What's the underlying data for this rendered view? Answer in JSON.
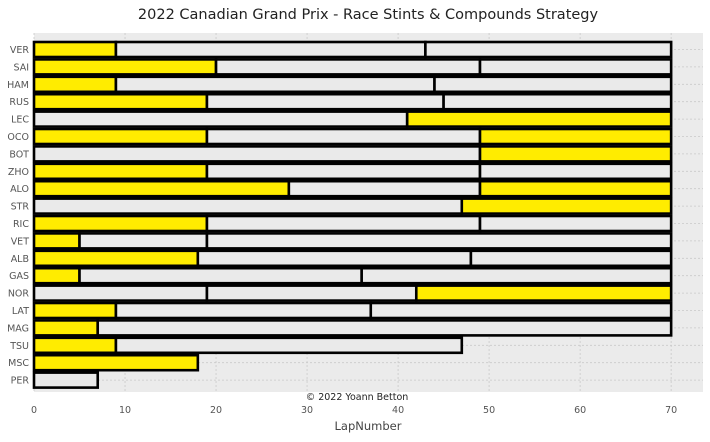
{
  "chart_data": {
    "type": "bar",
    "orientation": "horizontal",
    "stacked": true,
    "title": "2022 Canadian Grand Prix - Race Stints & Compounds Strategy",
    "xlabel": "LapNumber",
    "ylabel": "",
    "xlim": [
      0,
      73.5
    ],
    "xticks": [
      0,
      10,
      20,
      30,
      40,
      50,
      60,
      70
    ],
    "grid": true,
    "annotation": "© 2022 Yoann Betton",
    "compound_colors": {
      "SOFT": "#da291c",
      "MEDIUM": "#ffec00",
      "HARD": "#eaeaea"
    },
    "drivers": [
      {
        "driver": "VER",
        "stints": [
          {
            "compound": "MEDIUM",
            "laps": 9
          },
          {
            "compound": "HARD",
            "laps": 34
          },
          {
            "compound": "HARD",
            "laps": 27
          }
        ]
      },
      {
        "driver": "SAI",
        "stints": [
          {
            "compound": "MEDIUM",
            "laps": 20
          },
          {
            "compound": "HARD",
            "laps": 29
          },
          {
            "compound": "HARD",
            "laps": 21
          }
        ]
      },
      {
        "driver": "HAM",
        "stints": [
          {
            "compound": "MEDIUM",
            "laps": 9
          },
          {
            "compound": "HARD",
            "laps": 35
          },
          {
            "compound": "HARD",
            "laps": 26
          }
        ]
      },
      {
        "driver": "RUS",
        "stints": [
          {
            "compound": "MEDIUM",
            "laps": 19
          },
          {
            "compound": "HARD",
            "laps": 26
          },
          {
            "compound": "HARD",
            "laps": 25
          }
        ]
      },
      {
        "driver": "LEC",
        "stints": [
          {
            "compound": "HARD",
            "laps": 41
          },
          {
            "compound": "MEDIUM",
            "laps": 29
          }
        ]
      },
      {
        "driver": "OCO",
        "stints": [
          {
            "compound": "MEDIUM",
            "laps": 19
          },
          {
            "compound": "HARD",
            "laps": 30
          },
          {
            "compound": "MEDIUM",
            "laps": 21
          }
        ]
      },
      {
        "driver": "BOT",
        "stints": [
          {
            "compound": "HARD",
            "laps": 49
          },
          {
            "compound": "MEDIUM",
            "laps": 21
          }
        ]
      },
      {
        "driver": "ZHO",
        "stints": [
          {
            "compound": "MEDIUM",
            "laps": 19
          },
          {
            "compound": "HARD",
            "laps": 30
          },
          {
            "compound": "HARD",
            "laps": 21
          }
        ]
      },
      {
        "driver": "ALO",
        "stints": [
          {
            "compound": "MEDIUM",
            "laps": 28
          },
          {
            "compound": "HARD",
            "laps": 21
          },
          {
            "compound": "MEDIUM",
            "laps": 21
          }
        ]
      },
      {
        "driver": "STR",
        "stints": [
          {
            "compound": "HARD",
            "laps": 47
          },
          {
            "compound": "MEDIUM",
            "laps": 23
          }
        ]
      },
      {
        "driver": "RIC",
        "stints": [
          {
            "compound": "MEDIUM",
            "laps": 19
          },
          {
            "compound": "HARD",
            "laps": 30
          },
          {
            "compound": "HARD",
            "laps": 21
          }
        ]
      },
      {
        "driver": "VET",
        "stints": [
          {
            "compound": "MEDIUM",
            "laps": 5
          },
          {
            "compound": "HARD",
            "laps": 14
          },
          {
            "compound": "HARD",
            "laps": 51
          }
        ]
      },
      {
        "driver": "ALB",
        "stints": [
          {
            "compound": "MEDIUM",
            "laps": 18
          },
          {
            "compound": "HARD",
            "laps": 30
          },
          {
            "compound": "HARD",
            "laps": 22
          }
        ]
      },
      {
        "driver": "GAS",
        "stints": [
          {
            "compound": "MEDIUM",
            "laps": 5
          },
          {
            "compound": "HARD",
            "laps": 31
          },
          {
            "compound": "HARD",
            "laps": 34
          }
        ]
      },
      {
        "driver": "NOR",
        "stints": [
          {
            "compound": "HARD",
            "laps": 19
          },
          {
            "compound": "HARD",
            "laps": 23
          },
          {
            "compound": "MEDIUM",
            "laps": 28
          }
        ]
      },
      {
        "driver": "LAT",
        "stints": [
          {
            "compound": "MEDIUM",
            "laps": 9
          },
          {
            "compound": "HARD",
            "laps": 28
          },
          {
            "compound": "HARD",
            "laps": 33
          }
        ]
      },
      {
        "driver": "MAG",
        "stints": [
          {
            "compound": "MEDIUM",
            "laps": 7
          },
          {
            "compound": "HARD",
            "laps": 63
          }
        ]
      },
      {
        "driver": "TSU",
        "stints": [
          {
            "compound": "MEDIUM",
            "laps": 9
          },
          {
            "compound": "HARD",
            "laps": 38
          }
        ]
      },
      {
        "driver": "MSC",
        "stints": [
          {
            "compound": "MEDIUM",
            "laps": 18
          }
        ]
      },
      {
        "driver": "PER",
        "stints": [
          {
            "compound": "HARD",
            "laps": 7
          }
        ]
      }
    ]
  }
}
